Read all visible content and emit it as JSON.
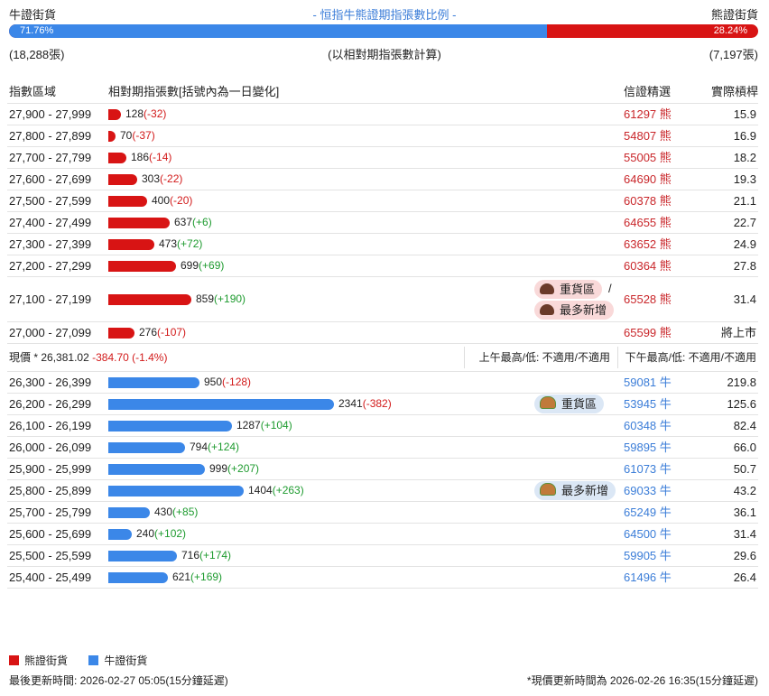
{
  "header": {
    "bull_label": "牛證街貨",
    "title": "- 恒指牛熊證期指張數比例 -",
    "bear_label": "熊證街貨",
    "bull_pct": "71.76%",
    "bear_pct": "28.24%",
    "bull_fraction": 0.7176,
    "bull_count": "(18,288張)",
    "note": "(以相對期指張數計算)",
    "bear_count": "(7,197張)"
  },
  "columns": {
    "range": "指數區域",
    "relative": "相對期指張數[括號內為一日變化]",
    "top_warrant": "信證精選",
    "leverage": "實際槓桿"
  },
  "bear_rows": [
    {
      "range": "27,900 - 27,999",
      "count": "128",
      "change": "(-32)",
      "change_sign": "neg",
      "bar": 128,
      "code": "61297",
      "kind": "熊",
      "lev": "15.9"
    },
    {
      "range": "27,800 - 27,899",
      "count": "70",
      "change": "(-37)",
      "change_sign": "neg",
      "bar": 70,
      "code": "54807",
      "kind": "熊",
      "lev": "16.9"
    },
    {
      "range": "27,700 - 27,799",
      "count": "186",
      "change": "(-14)",
      "change_sign": "neg",
      "bar": 186,
      "code": "55005",
      "kind": "熊",
      "lev": "18.2"
    },
    {
      "range": "27,600 - 27,699",
      "count": "303",
      "change": "(-22)",
      "change_sign": "neg",
      "bar": 303,
      "code": "64690",
      "kind": "熊",
      "lev": "19.3"
    },
    {
      "range": "27,500 - 27,599",
      "count": "400",
      "change": "(-20)",
      "change_sign": "neg",
      "bar": 400,
      "code": "60378",
      "kind": "熊",
      "lev": "21.1"
    },
    {
      "range": "27,400 - 27,499",
      "count": "637",
      "change": "(+6)",
      "change_sign": "pos",
      "bar": 637,
      "code": "64655",
      "kind": "熊",
      "lev": "22.7"
    },
    {
      "range": "27,300 - 27,399",
      "count": "473",
      "change": "(+72)",
      "change_sign": "pos",
      "bar": 473,
      "code": "63652",
      "kind": "熊",
      "lev": "24.9"
    },
    {
      "range": "27,200 - 27,299",
      "count": "699",
      "change": "(+69)",
      "change_sign": "pos",
      "bar": 699,
      "code": "60364",
      "kind": "熊",
      "lev": "27.8"
    },
    {
      "range": "27,100 - 27,199",
      "count": "859",
      "change": "(+190)",
      "change_sign": "pos",
      "bar": 859,
      "code": "65528",
      "kind": "熊",
      "lev": "31.4",
      "tall": true,
      "badges": [
        "重貨區",
        "最多新增"
      ],
      "slash": "/"
    },
    {
      "range": "27,000 - 27,099",
      "count": "276",
      "change": "(-107)",
      "change_sign": "neg",
      "bar": 276,
      "code": "65599",
      "kind": "熊",
      "lev": "將上市"
    }
  ],
  "price_bar": {
    "label": "現價 *",
    "value": "26,381.02",
    "change": "-384.70 (-1.4%)",
    "am": "上午最高/低: 不適用/不適用",
    "pm": "下午最高/低: 不適用/不適用"
  },
  "bull_rows": [
    {
      "range": "26,300 - 26,399",
      "count": "950",
      "change": "(-128)",
      "change_sign": "neg",
      "bar": 950,
      "code": "59081",
      "kind": "牛",
      "lev": "219.8"
    },
    {
      "range": "26,200 - 26,299",
      "count": "2341",
      "change": "(-382)",
      "change_sign": "neg",
      "bar": 2341,
      "code": "53945",
      "kind": "牛",
      "lev": "125.6",
      "badge": "重貨區"
    },
    {
      "range": "26,100 - 26,199",
      "count": "1287",
      "change": "(+104)",
      "change_sign": "pos",
      "bar": 1287,
      "code": "60348",
      "kind": "牛",
      "lev": "82.4"
    },
    {
      "range": "26,000 - 26,099",
      "count": "794",
      "change": "(+124)",
      "change_sign": "pos",
      "bar": 794,
      "code": "59895",
      "kind": "牛",
      "lev": "66.0"
    },
    {
      "range": "25,900 - 25,999",
      "count": "999",
      "change": "(+207)",
      "change_sign": "pos",
      "bar": 999,
      "code": "61073",
      "kind": "牛",
      "lev": "50.7"
    },
    {
      "range": "25,800 - 25,899",
      "count": "1404",
      "change": "(+263)",
      "change_sign": "pos",
      "bar": 1404,
      "code": "69033",
      "kind": "牛",
      "lev": "43.2",
      "badge": "最多新增"
    },
    {
      "range": "25,700 - 25,799",
      "count": "430",
      "change": "(+85)",
      "change_sign": "pos",
      "bar": 430,
      "code": "65249",
      "kind": "牛",
      "lev": "36.1"
    },
    {
      "range": "25,600 - 25,699",
      "count": "240",
      "change": "(+102)",
      "change_sign": "pos",
      "bar": 240,
      "code": "64500",
      "kind": "牛",
      "lev": "31.4"
    },
    {
      "range": "25,500 - 25,599",
      "count": "716",
      "change": "(+174)",
      "change_sign": "pos",
      "bar": 716,
      "code": "59905",
      "kind": "牛",
      "lev": "29.6"
    },
    {
      "range": "25,400 - 25,499",
      "count": "621",
      "change": "(+169)",
      "change_sign": "pos",
      "bar": 621,
      "code": "61496",
      "kind": "牛",
      "lev": "26.4"
    }
  ],
  "legend": {
    "bear": "熊證街貨",
    "bull": "牛證街貨"
  },
  "footer": {
    "left": "最後更新時間: 2026-02-27 05:05(15分鐘延遲)",
    "right": "*現價更新時間為 2026-02-26 16:35(15分鐘延遲)"
  },
  "colors": {
    "bear": "#d81414",
    "bull": "#3b87e8"
  }
}
